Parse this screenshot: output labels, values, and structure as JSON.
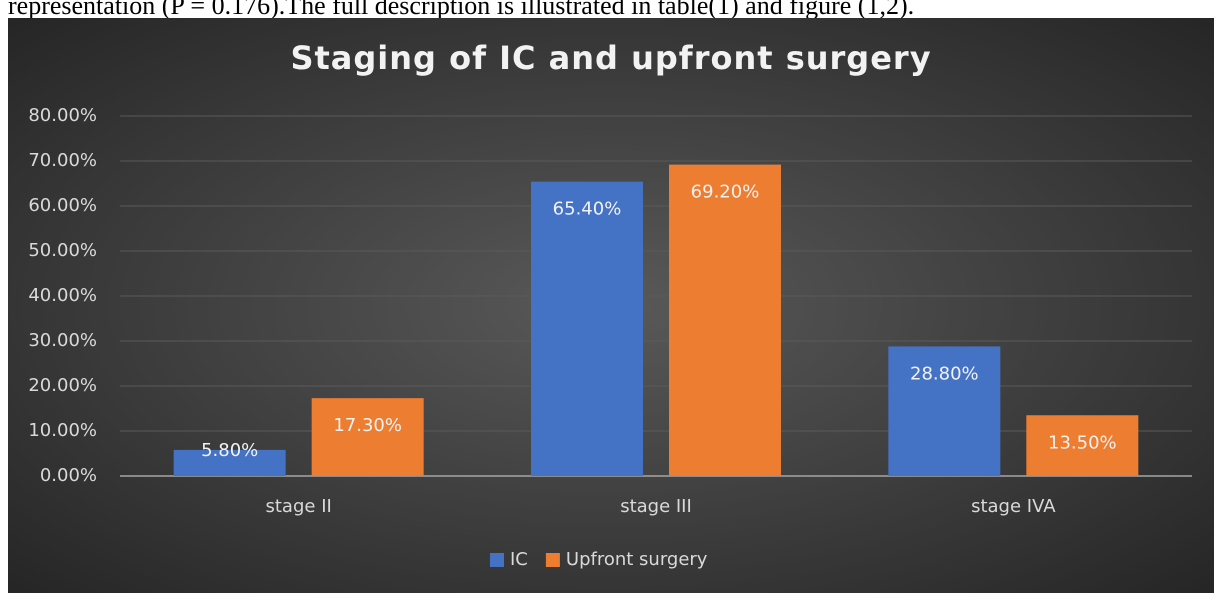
{
  "page_text": "representation (P = 0.176).The full description is illustrated in table(1) and figure (1,2).",
  "chart_data": {
    "type": "bar",
    "title": "Staging of IC and upfront surgery",
    "categories": [
      "stage II",
      "stage III",
      "stage IVA"
    ],
    "series": [
      {
        "name": "IC",
        "color": "#4472c4",
        "values": [
          5.8,
          65.4,
          28.8
        ],
        "value_labels": [
          "5.80%",
          "65.40%",
          "28.80%"
        ]
      },
      {
        "name": "Upfront surgery",
        "color": "#ed7d31",
        "values": [
          17.3,
          69.2,
          13.5
        ],
        "value_labels": [
          "17.30%",
          "69.20%",
          "13.50%"
        ]
      }
    ],
    "ylim": [
      0,
      80
    ],
    "yticks": [
      {
        "value": 0,
        "label": "0.00%"
      },
      {
        "value": 10,
        "label": "10.00%"
      },
      {
        "value": 20,
        "label": "20.00%"
      },
      {
        "value": 30,
        "label": "30.00%"
      },
      {
        "value": 40,
        "label": "40.00%"
      },
      {
        "value": 50,
        "label": "50.00%"
      },
      {
        "value": 60,
        "label": "60.00%"
      },
      {
        "value": 70,
        "label": "70.00%"
      },
      {
        "value": 80,
        "label": "80.00%"
      }
    ],
    "grid": true,
    "legend": "bottom"
  }
}
